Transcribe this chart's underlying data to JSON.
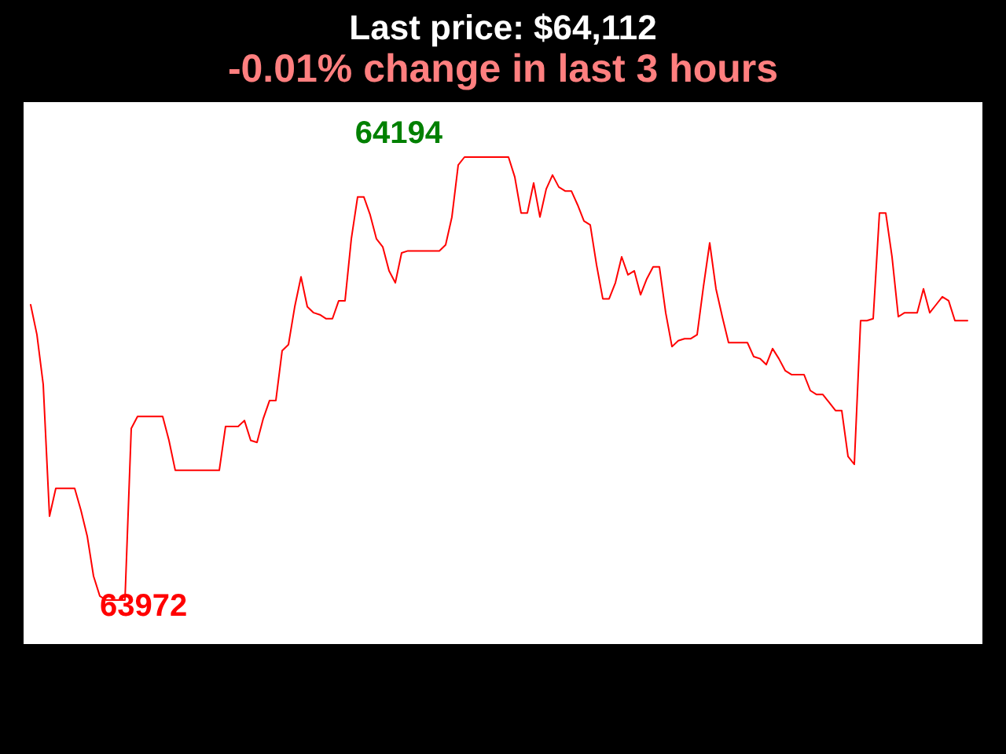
{
  "chart_data": {
    "type": "line",
    "title": "Last price: $64,112",
    "subtitle": "-0.01% change in last 3 hours",
    "color": "#ff0000",
    "categories": [
      null,
      null,
      null,
      null,
      null,
      null,
      null,
      null,
      null,
      null,
      null,
      null,
      null,
      null,
      null,
      null,
      null,
      null,
      null,
      null,
      null,
      null,
      null,
      null,
      null,
      null,
      null,
      null,
      null,
      null,
      null,
      null,
      null,
      null,
      null,
      null,
      null,
      null,
      null,
      null,
      null,
      null,
      null,
      null,
      null,
      null,
      null,
      null,
      null,
      null,
      null,
      null,
      null,
      null,
      null,
      null,
      null,
      null,
      null,
      null,
      null,
      null,
      null,
      null,
      null,
      null,
      null,
      null,
      null,
      null,
      null,
      null,
      null,
      null,
      null,
      null,
      null,
      null,
      null,
      null,
      null,
      null,
      null,
      null,
      null,
      null,
      null,
      null,
      null,
      null,
      null,
      null,
      null,
      null,
      null,
      null,
      null,
      null,
      null,
      null,
      null,
      null,
      null,
      null,
      null,
      null,
      null,
      null,
      null,
      null,
      null,
      null,
      null,
      null,
      null,
      null,
      null,
      null,
      null,
      null,
      null,
      null,
      null,
      null,
      null,
      null,
      null,
      null,
      null,
      null,
      null,
      null,
      null,
      null,
      null,
      null,
      null,
      null,
      null,
      null,
      null,
      null,
      null,
      null,
      null,
      null,
      null,
      null,
      null,
      null
    ],
    "values": [
      64120,
      64105,
      64080,
      64014,
      64028,
      64028,
      64028,
      64028,
      64017,
      64004,
      63984,
      63974,
      63972,
      63972,
      63972,
      63972,
      64058,
      64064,
      64064,
      64064,
      64064,
      64064,
      64052,
      64037,
      64037,
      64037,
      64037,
      64037,
      64037,
      64037,
      64037,
      64059,
      64059,
      64059,
      64062,
      64052,
      64051,
      64063,
      64072,
      64072,
      64097,
      64100,
      64119,
      64134,
      64119,
      64116,
      64115,
      64113,
      64113,
      64122,
      64122,
      64153,
      64174,
      64174,
      64165,
      64153,
      64149,
      64137,
      64131,
      64146,
      64147,
      64147,
      64147,
      64147,
      64147,
      64147,
      64150,
      64164,
      64190,
      64194,
      64194,
      64194,
      64194,
      64194,
      64194,
      64194,
      64194,
      64184,
      64166,
      64166,
      64181,
      64164,
      64178,
      64185,
      64179,
      64177,
      64177,
      64170,
      64162,
      64160,
      64140,
      64123,
      64123,
      64131,
      64144,
      64135,
      64137,
      64125,
      64133,
      64139,
      64139,
      64116,
      64099,
      64102,
      64103,
      64103,
      64105,
      64129,
      64151,
      64128,
      64114,
      64101,
      64101,
      64101,
      64101,
      64094,
      64093,
      64090,
      64098,
      64093,
      64087,
      64085,
      64085,
      64085,
      64077,
      64075,
      64075,
      64071,
      64067,
      64067,
      64044,
      64040,
      64112,
      64112,
      64113,
      64166,
      64166,
      64144,
      64114,
      64116,
      64116,
      64116,
      64128,
      64116,
      64120,
      64124,
      64122,
      64112,
      64112,
      64112
    ],
    "value_labels": [
      null,
      null,
      null,
      null,
      null,
      null,
      null,
      null,
      null,
      null,
      null,
      null,
      "63972",
      null,
      null,
      null,
      null,
      null,
      null,
      null,
      null,
      null,
      null,
      null,
      null,
      null,
      null,
      null,
      null,
      null,
      null,
      null,
      null,
      null,
      null,
      null,
      null,
      null,
      null,
      null,
      null,
      null,
      null,
      null,
      null,
      null,
      null,
      null,
      null,
      null,
      null,
      null,
      null,
      null,
      null,
      null,
      null,
      null,
      null,
      null,
      null,
      null,
      null,
      null,
      null,
      null,
      null,
      null,
      null,
      "64194",
      null,
      null,
      null,
      null,
      null,
      null,
      null,
      null,
      null,
      null,
      null,
      null,
      null,
      null,
      null,
      null,
      null,
      null,
      null,
      null,
      null,
      null,
      null,
      null,
      null,
      null,
      null,
      null,
      null,
      null,
      null,
      null,
      null,
      null,
      null,
      null,
      null,
      null,
      null,
      null,
      null,
      null,
      null,
      null,
      null,
      null,
      null,
      null,
      null,
      null,
      null,
      null,
      null,
      null,
      null,
      null,
      null,
      null,
      null,
      null,
      null,
      null,
      null,
      null,
      null,
      null,
      null,
      null,
      null,
      null,
      null,
      null,
      null,
      null,
      null,
      null,
      null,
      null,
      null,
      null
    ]
  }
}
